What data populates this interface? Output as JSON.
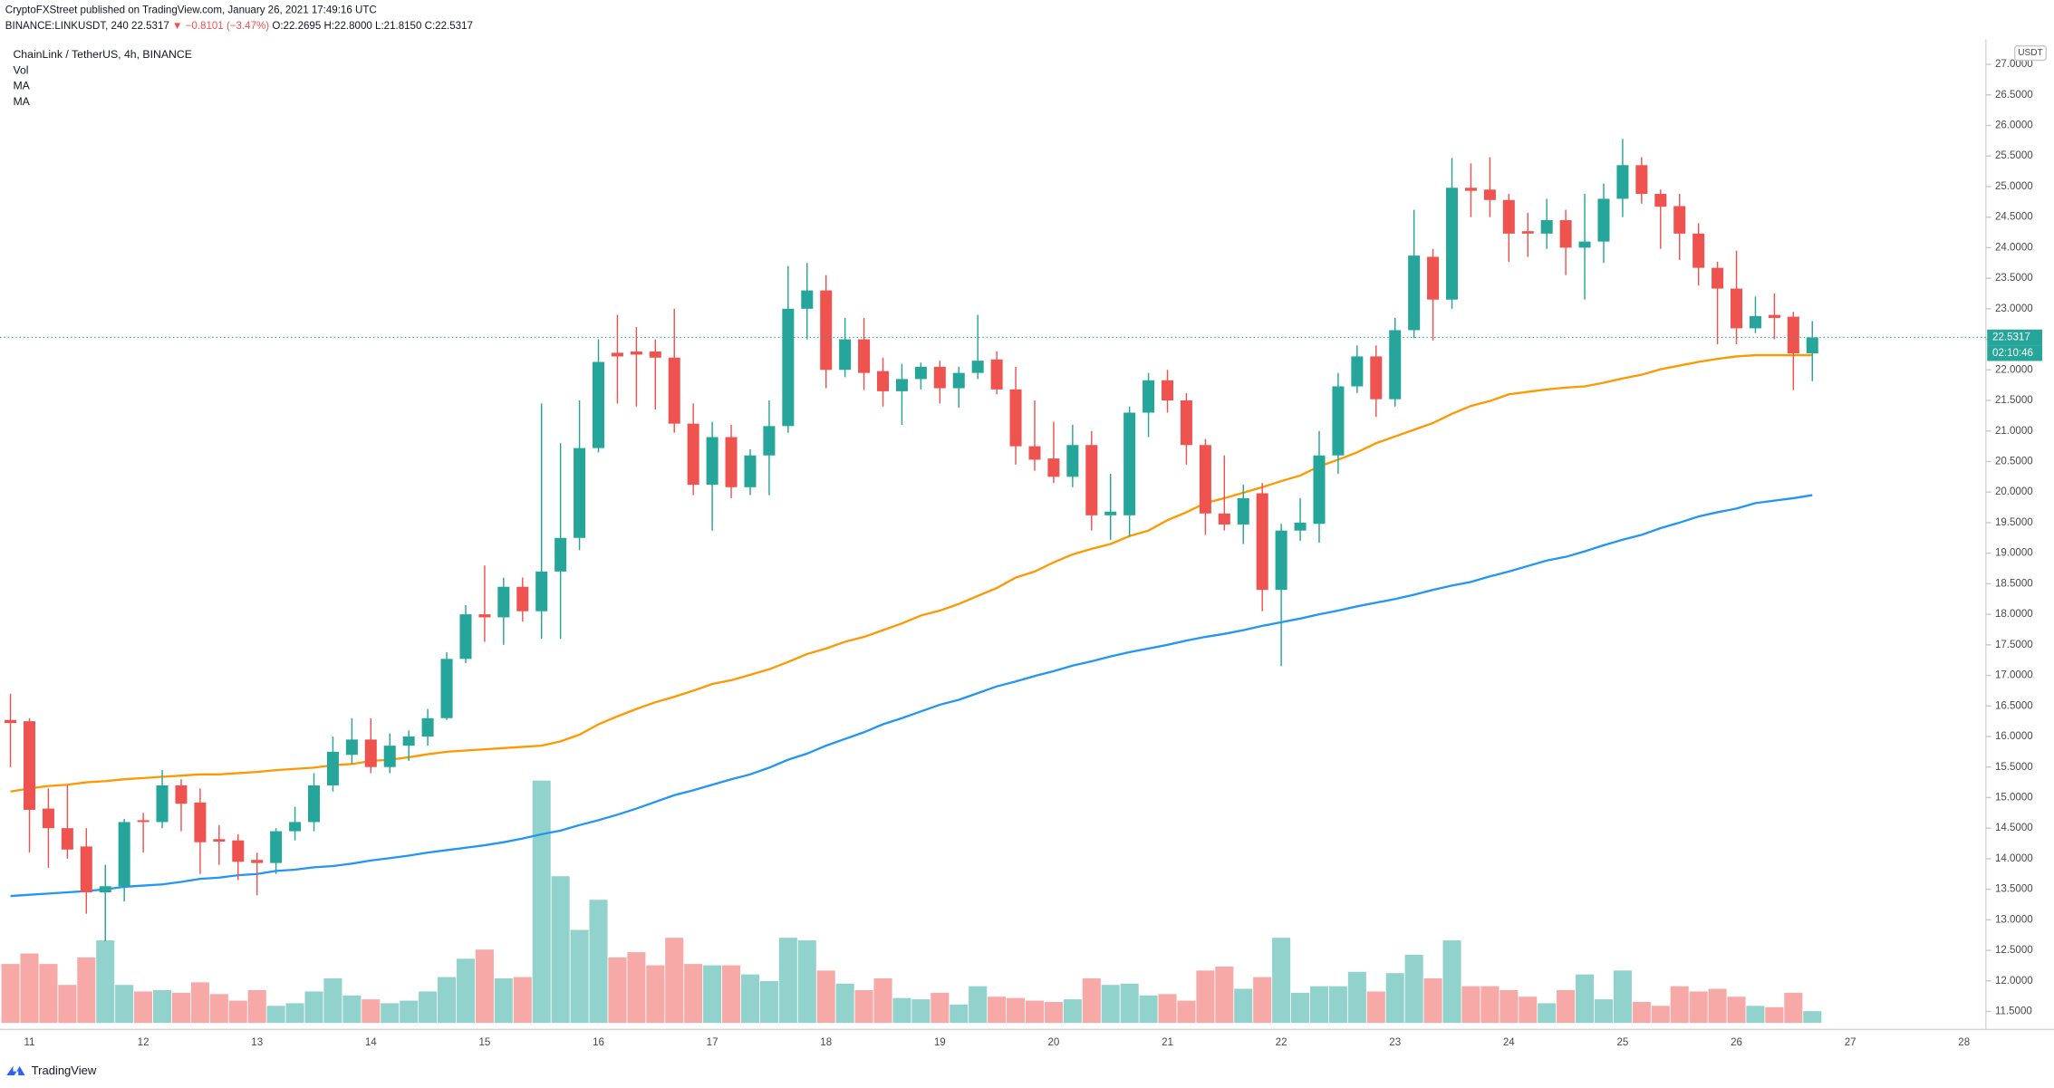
{
  "header": {
    "published": "CryptoFXStreet published on TradingView.com, January 26, 2021 17:49:16 UTC",
    "quote": [
      "BINANCE:LINKUSDT, 240",
      "22.5317",
      "▼",
      "−0.8101 (−3.47%)",
      "O:22.2695",
      "H:22.8000",
      "L:21.8150",
      "C:22.5317"
    ]
  },
  "footer": {
    "brand": "TradingView"
  },
  "chart_data": {
    "type": "candlestick",
    "title": "ChainLink / TetherUS, 4h, BINANCE",
    "volume_label": "Vol",
    "axis_unit": "USDT",
    "up_color": "#26a69a",
    "down_color": "#ef5350",
    "volume_up_color": "#92d2cc",
    "volume_down_color": "#f7a9a7",
    "categories": [
      null,
      "11",
      null,
      null,
      null,
      null,
      null,
      "12",
      null,
      null,
      null,
      null,
      null,
      "13",
      null,
      null,
      null,
      null,
      null,
      "14",
      null,
      null,
      null,
      null,
      null,
      "15",
      null,
      null,
      null,
      null,
      null,
      "16",
      null,
      null,
      null,
      null,
      null,
      "17",
      null,
      null,
      null,
      null,
      null,
      "18",
      null,
      null,
      null,
      null,
      null,
      "19",
      null,
      null,
      null,
      null,
      null,
      "20",
      null,
      null,
      null,
      null,
      null,
      "21",
      null,
      null,
      null,
      null,
      null,
      "22",
      null,
      null,
      null,
      null,
      null,
      "23",
      null,
      null,
      null,
      null,
      null,
      "24",
      null,
      null,
      null,
      null,
      null,
      "25",
      null,
      null,
      null,
      null,
      null,
      "26",
      null,
      null,
      null,
      null,
      null,
      "27",
      null,
      null,
      null,
      null,
      null,
      "28"
    ],
    "open": [
      16.27,
      16.25,
      14.82,
      14.5,
      14.2,
      13.45,
      13.55,
      14.63,
      14.6,
      15.2,
      14.92,
      14.32,
      14.3,
      13.98,
      13.93,
      14.45,
      14.6,
      15.2,
      15.7,
      15.95,
      15.5,
      15.85,
      16.0,
      16.3,
      17.27,
      18.0,
      17.95,
      18.45,
      18.05,
      18.7,
      19.25,
      20.72,
      22.28,
      22.3,
      22.3,
      22.2,
      21.12,
      20.12,
      20.9,
      20.08,
      20.6,
      21.08,
      23.0,
      23.3,
      22.0,
      22.5,
      21.98,
      21.65,
      21.85,
      22.05,
      21.7,
      21.95,
      22.17,
      21.68,
      20.75,
      20.55,
      20.25,
      20.77,
      19.62,
      19.62,
      21.3,
      21.83,
      21.5,
      20.77,
      19.65,
      19.47,
      19.98,
      18.4,
      19.37,
      19.48,
      20.6,
      21.73,
      22.22,
      21.52,
      22.65,
      23.85,
      23.15,
      24.98,
      24.95,
      24.78,
      24.27,
      24.23,
      24.45,
      24.0,
      24.1,
      24.8,
      25.35,
      24.88,
      24.68,
      24.23,
      23.67,
      23.33,
      22.68,
      22.9,
      22.87,
      22.2695,
      null,
      null,
      null,
      null,
      null,
      null,
      null,
      null
    ],
    "high": [
      16.7,
      16.3,
      15.15,
      15.2,
      14.5,
      13.9,
      14.65,
      14.75,
      15.45,
      15.3,
      15.15,
      14.55,
      14.4,
      14.1,
      14.5,
      14.85,
      15.4,
      16.0,
      16.3,
      16.3,
      16.05,
      16.1,
      16.45,
      17.38,
      18.15,
      18.8,
      18.6,
      18.6,
      21.45,
      20.8,
      21.5,
      22.5,
      22.9,
      22.7,
      22.5,
      23.0,
      21.45,
      21.15,
      21.1,
      20.7,
      21.5,
      23.7,
      23.75,
      23.55,
      22.85,
      22.85,
      22.2,
      22.1,
      22.12,
      22.15,
      22.05,
      22.9,
      22.3,
      22.05,
      21.5,
      21.15,
      21.1,
      21.0,
      20.3,
      21.4,
      21.95,
      22.0,
      21.62,
      20.87,
      20.6,
      20.12,
      20.15,
      19.48,
      19.9,
      21.0,
      21.95,
      22.4,
      22.4,
      22.85,
      24.62,
      23.98,
      25.47,
      25.38,
      25.48,
      24.88,
      24.57,
      24.8,
      24.62,
      24.88,
      25.05,
      25.78,
      25.48,
      24.95,
      24.88,
      24.4,
      23.77,
      23.95,
      23.2,
      23.25,
      22.95,
      22.8,
      null,
      null,
      null,
      null,
      null,
      null,
      null,
      null
    ],
    "low": [
      15.5,
      14.1,
      13.85,
      14.0,
      13.1,
      12.65,
      13.3,
      14.1,
      14.5,
      14.45,
      13.75,
      13.9,
      13.65,
      13.4,
      13.75,
      14.3,
      14.45,
      15.1,
      15.55,
      15.4,
      15.4,
      15.6,
      15.85,
      16.27,
      17.2,
      17.55,
      17.5,
      17.88,
      17.6,
      17.6,
      19.05,
      20.65,
      21.45,
      21.4,
      21.35,
      20.97,
      19.95,
      19.37,
      19.9,
      19.95,
      19.95,
      20.97,
      22.5,
      21.7,
      21.88,
      21.67,
      21.4,
      21.1,
      21.68,
      21.45,
      21.38,
      21.85,
      21.6,
      20.45,
      20.35,
      20.15,
      20.08,
      19.37,
      19.22,
      19.27,
      20.9,
      21.3,
      20.45,
      19.3,
      19.37,
      19.15,
      18.05,
      17.15,
      19.2,
      19.17,
      20.3,
      21.62,
      21.23,
      21.4,
      22.52,
      22.48,
      23.0,
      24.5,
      24.5,
      23.77,
      23.85,
      23.98,
      23.55,
      23.15,
      23.75,
      24.5,
      24.72,
      23.98,
      23.8,
      23.38,
      22.42,
      22.42,
      22.6,
      22.5,
      21.67,
      21.815,
      null,
      null,
      null,
      null,
      null,
      null,
      null,
      null
    ],
    "close": [
      16.22,
      14.8,
      14.5,
      14.15,
      13.45,
      13.55,
      14.6,
      14.6,
      15.2,
      14.9,
      14.27,
      14.28,
      13.95,
      13.93,
      14.45,
      14.6,
      15.2,
      15.75,
      15.95,
      15.5,
      15.85,
      16.0,
      16.3,
      17.27,
      18.0,
      17.95,
      18.45,
      18.05,
      18.7,
      19.25,
      20.72,
      22.13,
      22.22,
      22.25,
      22.2,
      21.12,
      20.12,
      20.9,
      20.08,
      20.6,
      21.08,
      23.0,
      23.3,
      22.0,
      22.5,
      21.95,
      21.65,
      21.85,
      22.05,
      21.7,
      21.95,
      22.15,
      21.68,
      20.75,
      20.53,
      20.25,
      20.77,
      19.62,
      19.68,
      21.3,
      21.83,
      21.5,
      20.77,
      19.65,
      19.47,
      19.9,
      18.4,
      19.37,
      19.5,
      20.6,
      21.73,
      22.22,
      21.52,
      22.65,
      23.87,
      23.15,
      24.98,
      24.93,
      24.78,
      24.23,
      24.23,
      24.45,
      24.0,
      24.1,
      24.8,
      25.35,
      24.88,
      24.67,
      24.23,
      23.67,
      23.33,
      22.68,
      22.88,
      22.85,
      22.27,
      22.5317,
      null,
      null,
      null,
      null,
      null,
      null,
      null,
      null
    ],
    "volume": [
      45,
      53,
      45,
      29,
      50,
      63,
      29,
      24,
      25,
      23,
      31,
      22,
      17,
      25,
      13,
      15,
      24,
      34,
      21,
      18,
      15,
      17,
      24,
      35,
      49,
      56,
      34,
      35,
      185,
      112,
      71,
      94,
      50,
      54,
      44,
      65,
      45,
      44,
      44,
      37,
      32,
      65,
      63,
      40,
      30,
      25,
      34,
      19,
      18,
      23,
      14,
      28,
      20,
      19,
      17,
      16,
      18,
      34,
      29,
      30,
      21,
      22,
      17,
      40,
      43,
      26,
      35,
      65,
      23,
      28,
      28,
      39,
      24,
      38,
      52,
      34,
      63,
      28,
      28,
      25,
      20,
      15,
      25,
      37,
      18,
      40,
      16,
      13,
      28,
      24,
      26,
      20,
      13,
      12,
      23,
      9,
      null,
      null,
      null,
      null,
      null,
      null,
      null,
      null
    ],
    "series": [
      {
        "name": "MA",
        "color": "#ff9800",
        "values": [
          15.1,
          15.15,
          15.19,
          15.21,
          15.25,
          15.27,
          15.3,
          15.32,
          15.34,
          15.36,
          15.38,
          15.38,
          15.4,
          15.42,
          15.45,
          15.47,
          15.49,
          15.53,
          15.55,
          15.6,
          15.62,
          15.66,
          15.71,
          15.75,
          15.77,
          15.79,
          15.81,
          15.83,
          15.85,
          15.92,
          16.03,
          16.2,
          16.33,
          16.45,
          16.56,
          16.65,
          16.75,
          16.86,
          16.92,
          17.01,
          17.1,
          17.22,
          17.35,
          17.44,
          17.55,
          17.63,
          17.74,
          17.85,
          17.98,
          18.06,
          18.17,
          18.3,
          18.43,
          18.6,
          18.7,
          18.85,
          18.98,
          19.07,
          19.15,
          19.28,
          19.37,
          19.54,
          19.67,
          19.82,
          19.9,
          19.99,
          20.08,
          20.18,
          20.27,
          20.42,
          20.53,
          20.65,
          20.8,
          20.91,
          21.02,
          21.13,
          21.28,
          21.41,
          21.49,
          21.6,
          21.64,
          21.68,
          21.71,
          21.73,
          21.79,
          21.86,
          21.92,
          22.01,
          22.07,
          22.13,
          22.18,
          22.22,
          22.24,
          22.24,
          22.24,
          22.24,
          null,
          null,
          null,
          null,
          null,
          null,
          null,
          null
        ]
      },
      {
        "name": "MA",
        "color": "#2196f3",
        "values": [
          13.39,
          13.41,
          13.43,
          13.45,
          13.47,
          13.5,
          13.54,
          13.56,
          13.58,
          13.62,
          13.67,
          13.69,
          13.73,
          13.75,
          13.8,
          13.82,
          13.86,
          13.88,
          13.92,
          13.97,
          14.01,
          14.05,
          14.1,
          14.14,
          14.18,
          14.22,
          14.27,
          14.33,
          14.4,
          14.46,
          14.55,
          14.63,
          14.72,
          14.82,
          14.93,
          15.04,
          15.12,
          15.21,
          15.3,
          15.38,
          15.49,
          15.62,
          15.72,
          15.85,
          15.96,
          16.07,
          16.2,
          16.3,
          16.41,
          16.52,
          16.6,
          16.71,
          16.82,
          16.9,
          16.99,
          17.07,
          17.16,
          17.23,
          17.31,
          17.38,
          17.44,
          17.5,
          17.57,
          17.63,
          17.68,
          17.74,
          17.81,
          17.87,
          17.93,
          18.0,
          18.06,
          18.13,
          18.19,
          18.25,
          18.32,
          18.4,
          18.47,
          18.53,
          18.62,
          18.7,
          18.79,
          18.88,
          18.94,
          19.03,
          19.13,
          19.22,
          19.3,
          19.41,
          19.5,
          19.6,
          19.67,
          19.73,
          19.82,
          19.86,
          19.9,
          19.95,
          null,
          null,
          null,
          null,
          null,
          null,
          null,
          null
        ]
      }
    ],
    "price_line": {
      "value": 22.5317,
      "label": "22.5317"
    },
    "countdown": "02:10:46",
    "ylim": [
      11.12,
      27.41
    ],
    "yticks": [
      {
        "value": 11.5,
        "label": "11.5000"
      },
      {
        "value": 12,
        "label": "12.0000"
      },
      {
        "value": 12.5,
        "label": "12.5000"
      },
      {
        "value": 13,
        "label": "13.0000"
      },
      {
        "value": 13.5,
        "label": "13.5000"
      },
      {
        "value": 14,
        "label": "14.0000"
      },
      {
        "value": 14.5,
        "label": "14.5000"
      },
      {
        "value": 15,
        "label": "15.0000"
      },
      {
        "value": 15.5,
        "label": "15.5000"
      },
      {
        "value": 16,
        "label": "16.0000"
      },
      {
        "value": 16.5,
        "label": "16.5000"
      },
      {
        "value": 17,
        "label": "17.0000"
      },
      {
        "value": 17.5,
        "label": "17.5000"
      },
      {
        "value": 18,
        "label": "18.0000"
      },
      {
        "value": 18.5,
        "label": "18.5000"
      },
      {
        "value": 19,
        "label": "19.0000"
      },
      {
        "value": 19.5,
        "label": "19.5000"
      },
      {
        "value": 20,
        "label": "20.0000"
      },
      {
        "value": 20.5,
        "label": "20.5000"
      },
      {
        "value": 21,
        "label": "21.0000"
      },
      {
        "value": 21.5,
        "label": "21.5000"
      },
      {
        "value": 22,
        "label": "22.0000"
      },
      {
        "value": 22.5,
        "label": "22.5000"
      },
      {
        "value": 23,
        "label": "23.0000"
      },
      {
        "value": 23.5,
        "label": "23.5000"
      },
      {
        "value": 24,
        "label": "24.0000"
      },
      {
        "value": 24.5,
        "label": "24.5000"
      },
      {
        "value": 25,
        "label": "25.0000"
      },
      {
        "value": 25.5,
        "label": "25.5000"
      },
      {
        "value": 26,
        "label": "26.0000"
      },
      {
        "value": 26.5,
        "label": "26.5000"
      },
      {
        "value": 27,
        "label": "27.0000"
      }
    ],
    "grid": false
  }
}
